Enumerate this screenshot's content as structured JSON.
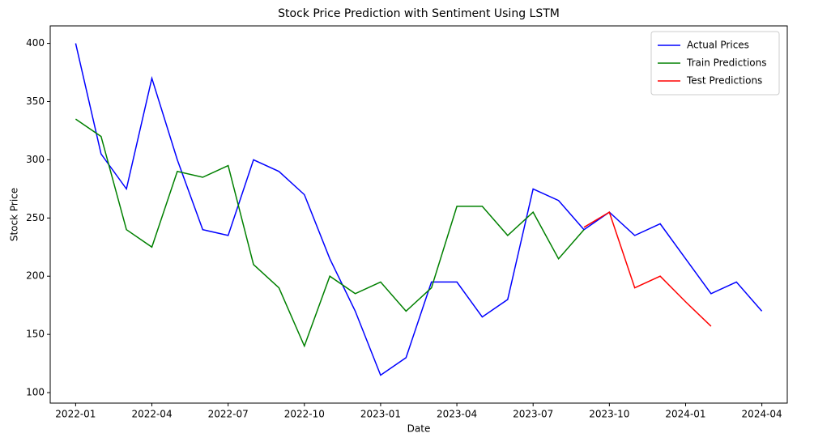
{
  "chart_data": {
    "type": "line",
    "title": "Stock Price Prediction with Sentiment Using LSTM",
    "xlabel": "Date",
    "ylabel": "Stock Price",
    "x": [
      "2022-01",
      "2022-02",
      "2022-03",
      "2022-04",
      "2022-05",
      "2022-06",
      "2022-07",
      "2022-08",
      "2022-09",
      "2022-10",
      "2022-11",
      "2022-12",
      "2023-01",
      "2023-02",
      "2023-03",
      "2023-04",
      "2023-05",
      "2023-06",
      "2023-07",
      "2023-08",
      "2023-09",
      "2023-10",
      "2023-11",
      "2023-12",
      "2024-01",
      "2024-02",
      "2024-03",
      "2024-04"
    ],
    "series": [
      {
        "name": "Actual Prices",
        "color": "#0000ff",
        "values": [
          400,
          305,
          275,
          370,
          300,
          240,
          235,
          300,
          290,
          270,
          215,
          170,
          115,
          130,
          195,
          195,
          165,
          180,
          275,
          265,
          240,
          255,
          235,
          245,
          215,
          185,
          195,
          170
        ]
      },
      {
        "name": "Train Predictions",
        "color": "#008000",
        "values": [
          335,
          320,
          240,
          225,
          290,
          285,
          295,
          210,
          190,
          140,
          200,
          185,
          195,
          170,
          190,
          260,
          260,
          235,
          255,
          215,
          240,
          null,
          null,
          null,
          null,
          null,
          null,
          null
        ]
      },
      {
        "name": "Test Predictions",
        "color": "#ff0000",
        "values": [
          null,
          null,
          null,
          null,
          null,
          null,
          null,
          null,
          null,
          null,
          null,
          null,
          null,
          null,
          null,
          null,
          null,
          null,
          null,
          null,
          242,
          255,
          190,
          200,
          178,
          157,
          null,
          null
        ]
      }
    ],
    "xlim": [
      "2021-12",
      "2024-05"
    ],
    "xticks": [
      "2022-01",
      "2022-04",
      "2022-07",
      "2022-10",
      "2023-01",
      "2023-04",
      "2023-07",
      "2023-10",
      "2024-01",
      "2024-04"
    ],
    "ylim": [
      91,
      415
    ],
    "yticks": [
      100,
      150,
      200,
      250,
      300,
      350,
      400
    ],
    "legend": "upper right"
  }
}
